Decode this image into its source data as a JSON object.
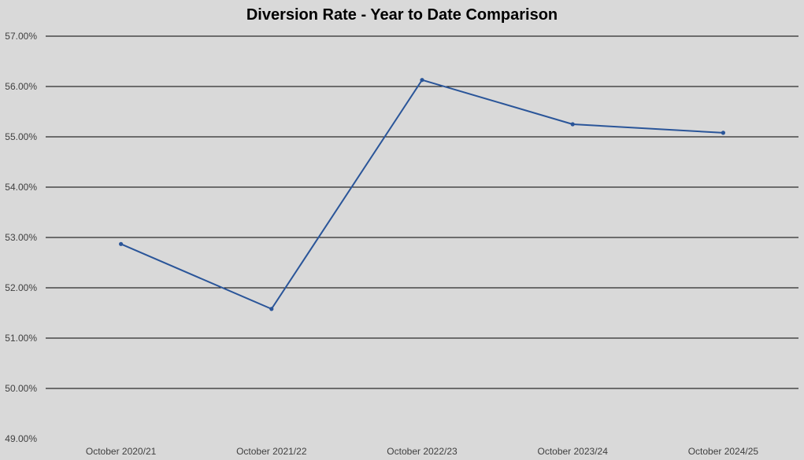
{
  "chart_data": {
    "type": "line",
    "title": "Diversion Rate - Year to Date Comparison",
    "categories": [
      "October 2020/21",
      "October 2021/22",
      "October 2022/23",
      "October 2023/24",
      "October 2024/25"
    ],
    "series": [
      {
        "values": [
          52.87,
          51.58,
          56.13,
          55.25,
          55.08
        ]
      }
    ],
    "ylim": [
      49,
      57
    ],
    "yticks": [
      "49.00%",
      "50.00%",
      "51.00%",
      "52.00%",
      "53.00%",
      "54.00%",
      "55.00%",
      "56.00%",
      "57.00%"
    ],
    "grid": true,
    "legend": "none",
    "colors": {
      "line": "#2a5599",
      "gridline": "#000000",
      "background": "#d9d9d9"
    }
  }
}
